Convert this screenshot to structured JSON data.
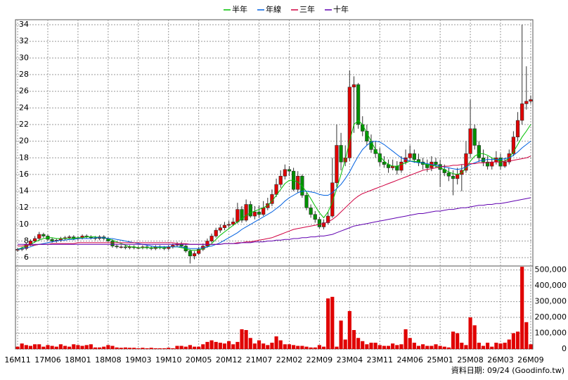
{
  "chart_data": {
    "type": "candlestick",
    "source": "資料日期: 09/24 (Goodinfo.tw)",
    "categories": [
      "16M11",
      null,
      null,
      null,
      null,
      null,
      null,
      "17M06",
      null,
      null,
      null,
      null,
      null,
      null,
      "18M01",
      null,
      null,
      null,
      null,
      null,
      null,
      "18M08",
      null,
      null,
      null,
      null,
      null,
      null,
      "19M03",
      null,
      null,
      null,
      null,
      null,
      null,
      "19M10",
      null,
      null,
      null,
      null,
      null,
      null,
      "20M05",
      null,
      null,
      null,
      null,
      null,
      null,
      "20M12",
      null,
      null,
      null,
      null,
      null,
      null,
      "21M07",
      null,
      null,
      null,
      null,
      null,
      null,
      "22M02",
      null,
      null,
      null,
      null,
      null,
      null,
      "22M09",
      null,
      null,
      null,
      null,
      null,
      null,
      "23M04",
      null,
      null,
      null,
      null,
      null,
      null,
      "23M11",
      null,
      null,
      null,
      null,
      null,
      null,
      "24M06",
      null,
      null,
      null,
      null,
      null,
      null,
      "25M01",
      null,
      null,
      null,
      null,
      null,
      null,
      "25M08",
      null,
      null,
      null,
      null,
      null,
      null,
      "26M03",
      null,
      null,
      null,
      null,
      null,
      null,
      "26M09"
    ],
    "up_color": "#e00000",
    "down_color": "#009000",
    "open": [
      6.9,
      7.0,
      7.1,
      7.6,
      8.0,
      8.3,
      8.8,
      8.6,
      8.2,
      8.0,
      8.1,
      8.3,
      8.4,
      8.5,
      8.3,
      8.4,
      8.6,
      8.5,
      8.4,
      8.3,
      8.5,
      8.3,
      8.0,
      7.4,
      7.3,
      7.3,
      7.2,
      7.3,
      7.2,
      7.2,
      7.3,
      7.2,
      7.1,
      7.3,
      7.2,
      7.1,
      7.3,
      7.5,
      7.6,
      7.4,
      6.8,
      6.2,
      6.5,
      7.0,
      7.4,
      8.0,
      8.6,
      9.3,
      9.6,
      9.9,
      10.0,
      10.3,
      11.8,
      10.5,
      12.4,
      11.0,
      11.5,
      11.2,
      12.0,
      12.5,
      13.6,
      14.8,
      15.8,
      16.6,
      16.4,
      14.2,
      15.8,
      13.5,
      12.0,
      11.2,
      10.6,
      9.7,
      10.2,
      11.0,
      15.0,
      19.5,
      17.5,
      18.0,
      26.5,
      26.8,
      22.0,
      21.2,
      20.0,
      19.0,
      18.5,
      17.5,
      17.2,
      16.8,
      17.0,
      16.5,
      17.5,
      18.0,
      18.5,
      17.8,
      17.5,
      17.2,
      16.8,
      17.5,
      17.2,
      16.6,
      16.2,
      15.8,
      15.5,
      16.0,
      16.5,
      18.5,
      21.5,
      19.5,
      18.0,
      17.5,
      17.0,
      17.5,
      18.0,
      17.0,
      17.5,
      18.5,
      20.5,
      22.5,
      24.5,
      24.8
    ],
    "high": [
      7.2,
      7.3,
      7.8,
      8.2,
      8.6,
      9.1,
      9.0,
      8.8,
      8.4,
      8.3,
      8.5,
      8.6,
      8.7,
      8.7,
      8.6,
      8.8,
      8.8,
      8.7,
      8.6,
      8.7,
      8.7,
      8.5,
      8.2,
      7.6,
      7.5,
      7.5,
      7.5,
      7.5,
      7.4,
      7.5,
      7.5,
      7.4,
      7.5,
      7.5,
      7.4,
      7.5,
      7.7,
      7.9,
      7.9,
      7.6,
      7.0,
      6.8,
      7.3,
      7.7,
      8.3,
      8.9,
      9.6,
      10.0,
      10.3,
      10.4,
      10.8,
      12.6,
      12.2,
      13.0,
      12.8,
      12.2,
      12.3,
      12.8,
      13.2,
      14.2,
      15.5,
      16.5,
      17.2,
      17.0,
      16.8,
      16.4,
      16.0,
      13.8,
      12.4,
      11.6,
      10.9,
      10.6,
      11.5,
      18.0,
      22.0,
      21.0,
      19.5,
      28.5,
      27.8,
      27.0,
      23.0,
      22.0,
      20.8,
      20.0,
      19.2,
      18.2,
      17.8,
      17.8,
      17.6,
      18.2,
      19.0,
      19.5,
      19.0,
      18.5,
      18.0,
      17.8,
      18.2,
      18.0,
      17.8,
      17.2,
      16.8,
      16.5,
      16.8,
      17.2,
      20.0,
      25.0,
      22.0,
      20.0,
      19.0,
      18.2,
      18.0,
      18.8,
      18.5,
      18.0,
      19.0,
      21.2,
      23.5,
      34.0,
      29.0,
      25.5
    ],
    "low": [
      6.7,
      6.8,
      6.9,
      7.4,
      7.8,
      8.1,
      8.4,
      8.0,
      7.8,
      7.8,
      7.9,
      8.1,
      8.2,
      8.1,
      8.1,
      8.2,
      8.3,
      8.2,
      8.1,
      8.1,
      8.1,
      7.9,
      7.2,
      7.1,
      7.1,
      7.0,
      7.0,
      7.0,
      7.0,
      7.0,
      7.0,
      6.9,
      6.9,
      7.0,
      6.9,
      6.9,
      7.1,
      7.3,
      7.2,
      6.6,
      5.3,
      5.8,
      6.3,
      6.8,
      7.2,
      7.8,
      8.4,
      9.0,
      9.3,
      9.6,
      9.8,
      10.1,
      10.2,
      10.3,
      10.8,
      10.6,
      10.8,
      11.0,
      11.7,
      12.2,
      13.3,
      14.4,
      15.4,
      15.8,
      14.0,
      13.8,
      13.2,
      11.7,
      10.8,
      10.2,
      9.5,
      9.4,
      10.0,
      10.8,
      14.5,
      16.5,
      17.0,
      17.6,
      21.0,
      21.5,
      20.6,
      19.5,
      18.6,
      18.0,
      17.0,
      16.8,
      16.2,
      16.5,
      16.0,
      16.2,
      17.2,
      17.6,
      17.4,
      17.0,
      16.6,
      16.3,
      16.4,
      16.8,
      14.5,
      15.8,
      15.2,
      13.5,
      14.8,
      14.0,
      16.2,
      18.0,
      19.0,
      17.5,
      17.0,
      16.6,
      16.6,
      17.2,
      16.6,
      16.8,
      17.2,
      18.2,
      20.0,
      22.0,
      23.8,
      24.5
    ],
    "close": [
      7.0,
      7.1,
      7.6,
      8.0,
      8.3,
      8.8,
      8.6,
      8.2,
      8.0,
      8.1,
      8.3,
      8.4,
      8.5,
      8.3,
      8.4,
      8.6,
      8.5,
      8.4,
      8.3,
      8.5,
      8.3,
      8.0,
      7.4,
      7.3,
      7.3,
      7.2,
      7.3,
      7.2,
      7.2,
      7.3,
      7.2,
      7.1,
      7.3,
      7.2,
      7.1,
      7.3,
      7.5,
      7.6,
      7.4,
      6.8,
      6.2,
      6.5,
      7.0,
      7.4,
      8.0,
      8.6,
      9.3,
      9.6,
      9.9,
      10.0,
      10.3,
      11.8,
      10.5,
      12.4,
      11.0,
      11.5,
      11.2,
      12.0,
      12.5,
      13.6,
      14.8,
      15.8,
      16.6,
      16.4,
      14.2,
      15.8,
      13.5,
      12.0,
      11.2,
      10.6,
      9.7,
      10.2,
      11.0,
      15.0,
      19.5,
      17.5,
      18.0,
      26.5,
      26.8,
      22.0,
      21.2,
      20.0,
      19.0,
      18.5,
      17.5,
      17.2,
      16.8,
      17.0,
      16.5,
      17.5,
      18.0,
      18.5,
      17.8,
      17.5,
      17.2,
      16.8,
      17.5,
      17.2,
      16.6,
      16.2,
      15.8,
      15.5,
      16.0,
      16.5,
      18.5,
      21.5,
      19.5,
      18.0,
      17.5,
      17.0,
      17.5,
      18.0,
      17.0,
      17.5,
      18.5,
      20.5,
      22.5,
      24.5,
      24.8,
      25.0
    ],
    "series": [
      {
        "name": "半年",
        "color": "#00c000",
        "values": [
          7.0,
          7.2,
          7.4,
          7.6,
          7.9,
          8.1,
          8.3,
          8.4,
          8.4,
          8.3,
          8.3,
          8.3,
          8.3,
          8.3,
          8.4,
          8.4,
          8.5,
          8.5,
          8.5,
          8.4,
          8.4,
          8.3,
          8.1,
          7.9,
          7.7,
          7.5,
          7.3,
          7.3,
          7.2,
          7.2,
          7.2,
          7.2,
          7.2,
          7.2,
          7.2,
          7.3,
          7.3,
          7.3,
          7.2,
          7.1,
          6.9,
          6.9,
          6.9,
          7.1,
          7.3,
          7.7,
          8.2,
          8.7,
          9.1,
          9.5,
          9.9,
          10.3,
          10.7,
          11.1,
          11.4,
          11.6,
          11.8,
          12.0,
          12.3,
          12.8,
          13.5,
          14.2,
          14.9,
          15.3,
          15.3,
          15.1,
          14.6,
          13.9,
          13.1,
          12.2,
          11.4,
          10.8,
          11.5,
          12.7,
          14.3,
          16.0,
          17.8,
          20.0,
          22.0,
          22.5,
          22.0,
          21.0,
          20.0,
          19.0,
          18.2,
          17.6,
          17.2,
          17.0,
          17.0,
          17.2,
          17.4,
          17.6,
          17.6,
          17.5,
          17.3,
          17.2,
          17.1,
          17.0,
          16.8,
          16.6,
          16.3,
          16.1,
          16.0,
          16.2,
          16.8,
          17.6,
          18.2,
          18.5,
          18.5,
          18.3,
          18.0,
          17.8,
          17.6,
          17.6,
          18.0,
          18.7,
          19.6,
          20.5,
          21.2,
          22.0
        ]
      },
      {
        "name": "年線",
        "color": "#0060e0",
        "values": [
          7.0,
          7.1,
          7.2,
          7.3,
          7.5,
          7.6,
          7.7,
          7.8,
          7.9,
          8.0,
          8.1,
          8.1,
          8.2,
          8.2,
          8.3,
          8.3,
          8.3,
          8.3,
          8.4,
          8.4,
          8.4,
          8.3,
          8.3,
          8.2,
          8.1,
          8.0,
          7.9,
          7.8,
          7.7,
          7.6,
          7.5,
          7.4,
          7.3,
          7.3,
          7.3,
          7.3,
          7.3,
          7.3,
          7.3,
          7.2,
          7.1,
          7.1,
          7.1,
          7.2,
          7.3,
          7.4,
          7.6,
          7.8,
          8.1,
          8.4,
          8.7,
          9.0,
          9.4,
          9.7,
          10.0,
          10.3,
          10.6,
          10.9,
          11.2,
          11.5,
          11.9,
          12.3,
          12.8,
          13.2,
          13.5,
          13.8,
          14.0,
          14.0,
          13.9,
          13.8,
          13.6,
          13.5,
          13.5,
          13.8,
          14.3,
          14.8,
          15.5,
          16.3,
          17.3,
          18.2,
          19.0,
          19.5,
          19.9,
          20.0,
          19.9,
          19.6,
          19.2,
          18.8,
          18.4,
          18.0,
          17.8,
          17.6,
          17.5,
          17.4,
          17.4,
          17.3,
          17.2,
          17.1,
          17.0,
          16.9,
          16.8,
          16.7,
          16.6,
          16.7,
          16.9,
          17.2,
          17.4,
          17.6,
          17.7,
          17.8,
          17.8,
          17.8,
          17.8,
          17.9,
          18.0,
          18.3,
          18.7,
          19.2,
          19.6,
          20.0
        ]
      },
      {
        "name": "三年",
        "color": "#d00040",
        "values": [
          7.4,
          7.4,
          7.5,
          7.5,
          7.5,
          7.6,
          7.6,
          7.6,
          7.7,
          7.7,
          7.7,
          7.7,
          7.7,
          7.7,
          7.8,
          7.8,
          7.8,
          7.8,
          7.8,
          7.8,
          7.8,
          7.8,
          7.8,
          7.8,
          7.8,
          7.8,
          7.8,
          7.8,
          7.8,
          7.8,
          7.8,
          7.8,
          7.8,
          7.8,
          7.8,
          7.8,
          7.8,
          7.7,
          7.7,
          7.7,
          7.6,
          7.6,
          7.6,
          7.6,
          7.6,
          7.6,
          7.6,
          7.6,
          7.7,
          7.7,
          7.7,
          7.8,
          7.8,
          7.9,
          7.9,
          8.0,
          8.1,
          8.2,
          8.3,
          8.4,
          8.6,
          8.8,
          9.0,
          9.2,
          9.4,
          9.5,
          9.6,
          9.7,
          9.8,
          9.9,
          10.0,
          10.1,
          10.3,
          10.6,
          11.0,
          11.5,
          12.0,
          12.5,
          13.0,
          13.4,
          13.7,
          13.9,
          14.1,
          14.3,
          14.5,
          14.7,
          14.9,
          15.1,
          15.3,
          15.5,
          15.7,
          15.9,
          16.1,
          16.3,
          16.5,
          16.6,
          16.7,
          16.8,
          16.9,
          17.0,
          17.0,
          17.1,
          17.1,
          17.2,
          17.2,
          17.3,
          17.3,
          17.4,
          17.4,
          17.4,
          17.5,
          17.5,
          17.5,
          17.6,
          17.6,
          17.7,
          17.8,
          17.9,
          18.0,
          18.2
        ]
      },
      {
        "name": "十年",
        "color": "#6000b0",
        "values": [
          7.6,
          7.6,
          7.6,
          7.6,
          7.6,
          7.6,
          7.6,
          7.6,
          7.6,
          7.6,
          7.6,
          7.6,
          7.6,
          7.6,
          7.6,
          7.6,
          7.6,
          7.6,
          7.6,
          7.6,
          7.6,
          7.6,
          7.6,
          7.6,
          7.6,
          7.6,
          7.6,
          7.6,
          7.6,
          7.6,
          7.6,
          7.6,
          7.6,
          7.6,
          7.6,
          7.6,
          7.6,
          7.6,
          7.6,
          7.6,
          7.6,
          7.6,
          7.6,
          7.6,
          7.6,
          7.6,
          7.6,
          7.6,
          7.7,
          7.7,
          7.7,
          7.7,
          7.8,
          7.8,
          7.8,
          7.9,
          7.9,
          7.9,
          8.0,
          8.0,
          8.1,
          8.1,
          8.2,
          8.2,
          8.3,
          8.3,
          8.4,
          8.4,
          8.5,
          8.5,
          8.6,
          8.6,
          8.7,
          8.8,
          9.0,
          9.2,
          9.4,
          9.6,
          9.8,
          9.9,
          10.0,
          10.1,
          10.2,
          10.3,
          10.4,
          10.5,
          10.6,
          10.7,
          10.8,
          10.9,
          11.0,
          11.1,
          11.2,
          11.3,
          11.3,
          11.4,
          11.5,
          11.6,
          11.6,
          11.7,
          11.8,
          11.8,
          11.9,
          12.0,
          12.0,
          12.1,
          12.2,
          12.3,
          12.3,
          12.4,
          12.4,
          12.5,
          12.5,
          12.6,
          12.7,
          12.8,
          12.9,
          13.0,
          13.1,
          13.2
        ]
      }
    ],
    "volume": {
      "color": "#e00000",
      "values": [
        15000,
        35000,
        25000,
        20000,
        30000,
        30000,
        15000,
        25000,
        20000,
        15000,
        30000,
        20000,
        15000,
        30000,
        25000,
        20000,
        25000,
        30000,
        10000,
        10000,
        15000,
        25000,
        20000,
        10000,
        8000,
        10000,
        8000,
        8000,
        5000,
        8000,
        5000,
        8000,
        5000,
        5000,
        5000,
        8000,
        5000,
        20000,
        20000,
        15000,
        25000,
        15000,
        15000,
        30000,
        45000,
        55000,
        45000,
        40000,
        35000,
        50000,
        30000,
        45000,
        125000,
        120000,
        70000,
        35000,
        55000,
        35000,
        25000,
        40000,
        80000,
        55000,
        30000,
        30000,
        25000,
        20000,
        20000,
        15000,
        10000,
        10000,
        25000,
        15000,
        320000,
        330000,
        15000,
        180000,
        60000,
        240000,
        120000,
        70000,
        50000,
        30000,
        40000,
        40000,
        25000,
        20000,
        20000,
        35000,
        25000,
        30000,
        125000,
        70000,
        40000,
        20000,
        30000,
        20000,
        20000,
        30000,
        20000,
        15000,
        10000,
        110000,
        100000,
        40000,
        25000,
        200000,
        150000,
        40000,
        20000,
        40000,
        15000,
        40000,
        35000,
        40000,
        60000,
        100000,
        110000,
        520000,
        170000,
        30000
      ]
    },
    "ylim": [
      5,
      34.6
    ],
    "yticks": [
      6,
      8,
      10,
      12,
      14,
      16,
      18,
      20,
      22,
      24,
      26,
      28,
      30,
      32,
      34
    ],
    "y2lim": [
      0,
      525000
    ],
    "y2ticks": [
      0,
      {
        "value": 100000,
        "label": "100,000"
      },
      {
        "value": 200000,
        "label": "200,000"
      },
      {
        "value": 300000,
        "label": "300,000"
      },
      {
        "value": 400000,
        "label": "400,000"
      },
      {
        "value": 500000,
        "label": "500,000"
      }
    ],
    "grid": true
  }
}
